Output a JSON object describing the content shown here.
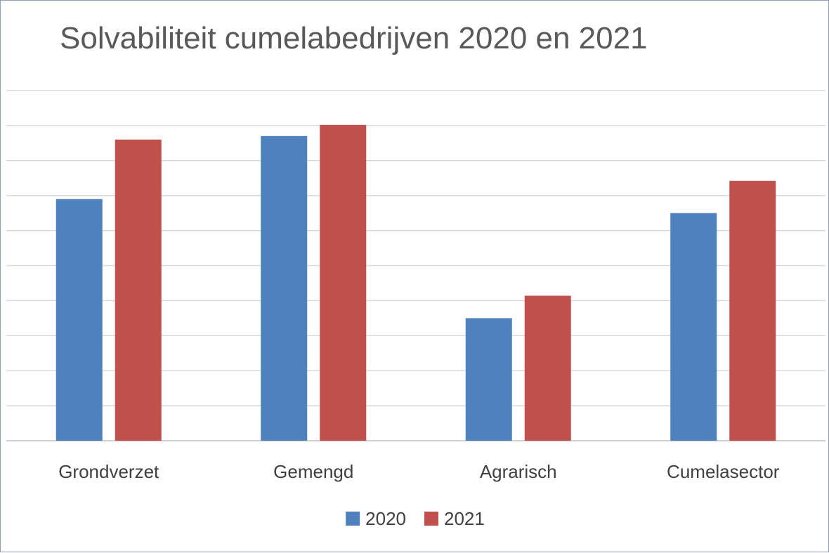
{
  "chart_data": {
    "type": "bar",
    "title": "Solvabiliteit cumelabedrijven 2020 en 2021",
    "categories": [
      "Grondverzet",
      "Gemengd",
      "Agrarisch",
      "Cumelasector"
    ],
    "series": [
      {
        "name": "2020",
        "color": "#4f81bd",
        "values": [
          34.5,
          43.5,
          17.5,
          32.5
        ]
      },
      {
        "name": "2021",
        "color": "#c0504d",
        "values": [
          43.0,
          45.1,
          20.7,
          37.1
        ]
      }
    ],
    "ylim": [
      0,
      50
    ],
    "y_tick_step": 5,
    "y_tick_labels_shown": false,
    "grid": true,
    "legend": "bottom-center"
  }
}
